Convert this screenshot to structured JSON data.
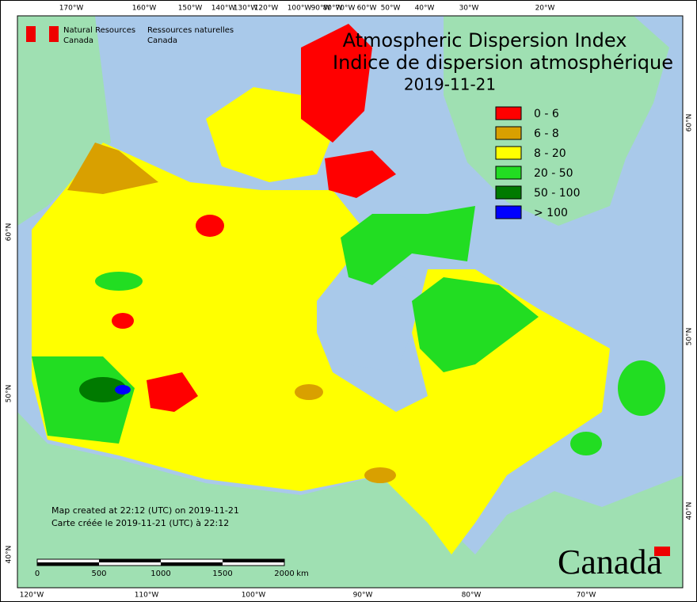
{
  "agency": {
    "en_1": "Natural Resources",
    "en_2": "Canada",
    "fr_1": "Ressources naturelles",
    "fr_2": "Canada"
  },
  "title": {
    "en": "Atmospheric Dispersion Index",
    "fr": "Indice de dispersion atmosphérique",
    "date": "2019-11-21"
  },
  "legend": [
    {
      "label": "0 - 6",
      "color": "#ff0000"
    },
    {
      "label": "6 - 8",
      "color": "#d9a000"
    },
    {
      "label": "8 - 20",
      "color": "#ffff00"
    },
    {
      "label": "20 - 50",
      "color": "#22dd22"
    },
    {
      "label": "50 - 100",
      "color": "#007a00"
    },
    {
      "label": "> 100",
      "color": "#0000ff"
    }
  ],
  "graticule": {
    "top": [
      "170°W",
      "160°W",
      "150°W",
      "140°W",
      "130°W",
      "120°W",
      "100°W",
      "90°W",
      "80°W",
      "70°W",
      "60°W",
      "50°W",
      "40°W",
      "30°W",
      "20°W"
    ],
    "bottom": [
      "120°W",
      "110°W",
      "100°W",
      "90°W",
      "80°W",
      "70°W"
    ],
    "left": [
      "60°N",
      "50°N",
      "40°N"
    ],
    "right": [
      "60°N",
      "50°N",
      "40°N"
    ]
  },
  "notes": {
    "en": "Map created at 22:12 (UTC) on 2019-11-21",
    "fr": "Carte créée le 2019-11-21 (UTC) à 22:12"
  },
  "scale": [
    "0",
    "500",
    "1000",
    "1500",
    "2000",
    "km"
  ],
  "wordmark": "Canada"
}
